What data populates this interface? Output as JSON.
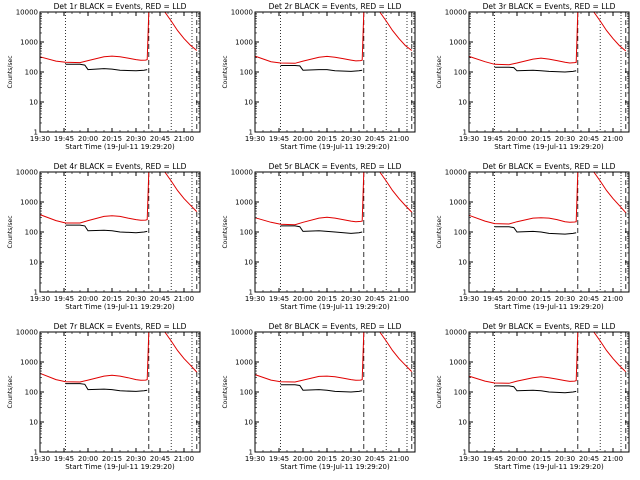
{
  "figure": {
    "x_tick_labels": [
      "19:30",
      "19:45",
      "20:00",
      "20:15",
      "20:30",
      "20:45",
      "21:00"
    ],
    "y_tick_labels": [
      "1",
      "10",
      "100",
      "1000",
      "10000"
    ],
    "xlabel": "Start Time (19-Jul-11 19:29:20)",
    "ylabel": "Counts/sec",
    "colors": {
      "events": "#000000",
      "lld": "#e00000",
      "axes": "#000000"
    }
  },
  "chart_data": [
    {
      "type": "line",
      "title": "Det 1r BLACK = Events, RED = LLD",
      "xlabel": "Start Time (19-Jul-11 19:29:20)",
      "ylabel": "Counts/sec",
      "xlim": [
        "19:30",
        "21:10"
      ],
      "ylim": [
        1,
        10000
      ],
      "y_scale": "log",
      "x_tick_labels": [
        "19:30",
        "19:45",
        "20:00",
        "20:15",
        "20:30",
        "20:45",
        "21:00"
      ],
      "y_tick_labels": [
        "1",
        "10",
        "100",
        "1000",
        "10000"
      ],
      "vlines_dotted": [
        "19:46",
        "20:52",
        "21:05"
      ],
      "vlines_dashed": [
        "20:38",
        "21:08"
      ],
      "series": [
        {
          "x": [
            "19:30",
            "19:40",
            "19:46",
            "19:55",
            "20:00",
            "20:10",
            "20:15",
            "20:20",
            "20:25",
            "20:30",
            "20:33",
            "20:36",
            "20:37",
            "20:38",
            "20:40",
            "20:44",
            "20:48",
            "20:52",
            "20:56",
            "21:00",
            "21:04",
            "21:08"
          ],
          "y": [
            320,
            230,
            210,
            205,
            240,
            320,
            340,
            320,
            290,
            260,
            245,
            250,
            260,
            10000,
            10000,
            10000,
            10000,
            5000,
            2400,
            1300,
            780,
            520
          ]
        },
        {
          "x": [
            "19:46",
            "19:55",
            "19:58",
            "20:00",
            "20:10",
            "20:15",
            "20:20",
            "20:30",
            "20:35",
            "20:37"
          ],
          "y": [
            180,
            180,
            170,
            120,
            130,
            125,
            115,
            110,
            115,
            120
          ]
        }
      ]
    },
    {
      "type": "line",
      "title": "Det 2r BLACK = Events, RED = LLD",
      "xlabel": "Start Time (19-Jul-11 19:29:20)",
      "ylabel": "Counts/sec",
      "xlim": [
        "19:30",
        "21:10"
      ],
      "ylim": [
        1,
        10000
      ],
      "y_scale": "log",
      "x_tick_labels": [
        "19:30",
        "19:45",
        "20:00",
        "20:15",
        "20:30",
        "20:45",
        "21:00"
      ],
      "y_tick_labels": [
        "1",
        "10",
        "100",
        "1000",
        "10000"
      ],
      "vlines_dotted": [
        "19:46",
        "20:52",
        "21:05"
      ],
      "vlines_dashed": [
        "20:38",
        "21:08"
      ],
      "series": [
        {
          "x": [
            "19:30",
            "19:40",
            "19:46",
            "19:55",
            "20:00",
            "20:10",
            "20:15",
            "20:20",
            "20:25",
            "20:30",
            "20:33",
            "20:36",
            "20:37",
            "20:38",
            "20:40",
            "20:44",
            "20:48",
            "20:52",
            "20:56",
            "21:00",
            "21:04",
            "21:08"
          ],
          "y": [
            340,
            220,
            200,
            195,
            230,
            310,
            330,
            310,
            280,
            250,
            235,
            240,
            250,
            10000,
            10000,
            10000,
            10000,
            5000,
            2400,
            1300,
            760,
            520
          ]
        },
        {
          "x": [
            "19:46",
            "19:55",
            "19:58",
            "20:00",
            "20:10",
            "20:15",
            "20:20",
            "20:30",
            "20:35",
            "20:37"
          ],
          "y": [
            165,
            165,
            160,
            115,
            120,
            120,
            110,
            105,
            110,
            115
          ]
        }
      ]
    },
    {
      "type": "line",
      "title": "Det 3r BLACK = Events, RED = LLD",
      "xlabel": "Start Time (19-Jul-11 19:29:20)",
      "ylabel": "Counts/sec",
      "xlim": [
        "19:30",
        "21:10"
      ],
      "ylim": [
        1,
        10000
      ],
      "y_scale": "log",
      "x_tick_labels": [
        "19:30",
        "19:45",
        "20:00",
        "20:15",
        "20:30",
        "20:45",
        "21:00"
      ],
      "y_tick_labels": [
        "1",
        "10",
        "100",
        "1000",
        "10000"
      ],
      "vlines_dotted": [
        "19:46",
        "20:52",
        "21:05"
      ],
      "vlines_dashed": [
        "20:38",
        "21:08"
      ],
      "series": [
        {
          "x": [
            "19:30",
            "19:40",
            "19:46",
            "19:55",
            "20:00",
            "20:10",
            "20:15",
            "20:20",
            "20:25",
            "20:30",
            "20:33",
            "20:36",
            "20:37",
            "20:38",
            "20:40",
            "20:44",
            "20:48",
            "20:52",
            "20:56",
            "21:00",
            "21:04",
            "21:08"
          ],
          "y": [
            330,
            220,
            180,
            175,
            200,
            270,
            290,
            270,
            240,
            210,
            200,
            205,
            210,
            10000,
            10000,
            10000,
            10000,
            5000,
            2400,
            1300,
            760,
            500
          ]
        },
        {
          "x": [
            "19:46",
            "19:55",
            "19:58",
            "20:00",
            "20:10",
            "20:15",
            "20:20",
            "20:30",
            "20:35",
            "20:37"
          ],
          "y": [
            145,
            145,
            140,
            110,
            115,
            110,
            105,
            100,
            105,
            110
          ]
        }
      ]
    },
    {
      "type": "line",
      "title": "Det 4r BLACK = Events, RED = LLD",
      "xlabel": "Start Time (19-Jul-11 19:29:20)",
      "ylabel": "Counts/sec",
      "xlim": [
        "19:30",
        "21:10"
      ],
      "ylim": [
        1,
        10000
      ],
      "y_scale": "log",
      "x_tick_labels": [
        "19:30",
        "19:45",
        "20:00",
        "20:15",
        "20:30",
        "20:45",
        "21:00"
      ],
      "y_tick_labels": [
        "1",
        "10",
        "100",
        "1000",
        "10000"
      ],
      "vlines_dotted": [
        "19:46",
        "20:52",
        "21:05"
      ],
      "vlines_dashed": [
        "20:38",
        "21:08"
      ],
      "series": [
        {
          "x": [
            "19:30",
            "19:40",
            "19:46",
            "19:55",
            "20:00",
            "20:10",
            "20:15",
            "20:20",
            "20:25",
            "20:30",
            "20:33",
            "20:36",
            "20:37",
            "20:38",
            "20:40",
            "20:44",
            "20:48",
            "20:52",
            "20:56",
            "21:00",
            "21:04",
            "21:08"
          ],
          "y": [
            380,
            240,
            200,
            200,
            240,
            330,
            350,
            330,
            290,
            260,
            245,
            250,
            260,
            10000,
            10000,
            10000,
            10000,
            5000,
            2400,
            1300,
            780,
            480
          ]
        },
        {
          "x": [
            "19:46",
            "19:55",
            "19:58",
            "20:00",
            "20:10",
            "20:15",
            "20:20",
            "20:30",
            "20:35",
            "20:37"
          ],
          "y": [
            170,
            170,
            160,
            110,
            115,
            110,
            100,
            95,
            100,
            105
          ]
        }
      ]
    },
    {
      "type": "line",
      "title": "Det 5r BLACK = Events, RED = LLD",
      "xlabel": "Start Time (19-Jul-11 19:29:20)",
      "ylabel": "Counts/sec",
      "xlim": [
        "19:30",
        "21:10"
      ],
      "ylim": [
        1,
        10000
      ],
      "y_scale": "log",
      "x_tick_labels": [
        "19:30",
        "19:45",
        "20:00",
        "20:15",
        "20:30",
        "20:45",
        "21:00"
      ],
      "y_tick_labels": [
        "1",
        "10",
        "100",
        "1000",
        "10000"
      ],
      "vlines_dotted": [
        "19:46",
        "20:52",
        "21:05"
      ],
      "vlines_dashed": [
        "20:38",
        "21:08"
      ],
      "series": [
        {
          "x": [
            "19:30",
            "19:40",
            "19:46",
            "19:55",
            "20:00",
            "20:10",
            "20:15",
            "20:20",
            "20:25",
            "20:30",
            "20:33",
            "20:36",
            "20:37",
            "20:38",
            "20:40",
            "20:44",
            "20:48",
            "20:52",
            "20:56",
            "21:00",
            "21:04",
            "21:08"
          ],
          "y": [
            300,
            210,
            180,
            175,
            210,
            290,
            310,
            290,
            260,
            230,
            220,
            225,
            230,
            10000,
            10000,
            10000,
            10000,
            5000,
            2400,
            1300,
            760,
            460
          ]
        },
        {
          "x": [
            "19:46",
            "19:55",
            "19:58",
            "20:00",
            "20:10",
            "20:15",
            "20:20",
            "20:30",
            "20:35",
            "20:37"
          ],
          "y": [
            160,
            160,
            150,
            105,
            110,
            105,
            100,
            90,
            95,
            100
          ]
        }
      ]
    },
    {
      "type": "line",
      "title": "Det 6r BLACK = Events, RED = LLD",
      "xlabel": "Start Time (19-Jul-11 19:29:20)",
      "ylabel": "Counts/sec",
      "xlim": [
        "19:30",
        "21:10"
      ],
      "ylim": [
        1,
        10000
      ],
      "y_scale": "log",
      "x_tick_labels": [
        "19:30",
        "19:45",
        "20:00",
        "20:15",
        "20:30",
        "20:45",
        "21:00"
      ],
      "y_tick_labels": [
        "1",
        "10",
        "100",
        "1000",
        "10000"
      ],
      "vlines_dotted": [
        "19:46",
        "20:52",
        "21:05"
      ],
      "vlines_dashed": [
        "20:38",
        "21:08"
      ],
      "series": [
        {
          "x": [
            "19:30",
            "19:40",
            "19:46",
            "19:55",
            "20:00",
            "20:10",
            "20:15",
            "20:20",
            "20:25",
            "20:30",
            "20:33",
            "20:36",
            "20:37",
            "20:38",
            "20:40",
            "20:44",
            "20:48",
            "20:52",
            "20:56",
            "21:00",
            "21:04",
            "21:08"
          ],
          "y": [
            360,
            230,
            190,
            185,
            220,
            290,
            300,
            290,
            260,
            220,
            210,
            215,
            220,
            10000,
            10000,
            10000,
            10000,
            5000,
            2400,
            1300,
            760,
            440
          ]
        },
        {
          "x": [
            "19:46",
            "19:55",
            "19:58",
            "20:00",
            "20:10",
            "20:15",
            "20:20",
            "20:30",
            "20:35",
            "20:37"
          ],
          "y": [
            150,
            150,
            140,
            100,
            105,
            100,
            90,
            85,
            90,
            95
          ]
        }
      ]
    },
    {
      "type": "line",
      "title": "Det 7r BLACK = Events, RED = LLD",
      "xlabel": "Start Time (19-Jul-11 19:29:20)",
      "ylabel": "Counts/sec",
      "xlim": [
        "19:30",
        "21:10"
      ],
      "ylim": [
        1,
        10000
      ],
      "y_scale": "log",
      "x_tick_labels": [
        "19:30",
        "19:45",
        "20:00",
        "20:15",
        "20:30",
        "20:45",
        "21:00"
      ],
      "y_tick_labels": [
        "1",
        "10",
        "100",
        "1000",
        "10000"
      ],
      "vlines_dotted": [
        "19:46",
        "20:52",
        "21:05"
      ],
      "vlines_dashed": [
        "20:38",
        "21:08"
      ],
      "series": [
        {
          "x": [
            "19:30",
            "19:40",
            "19:46",
            "19:55",
            "20:00",
            "20:10",
            "20:15",
            "20:20",
            "20:25",
            "20:30",
            "20:33",
            "20:36",
            "20:37",
            "20:38",
            "20:40",
            "20:44",
            "20:48",
            "20:52",
            "20:56",
            "21:00",
            "21:04",
            "21:08"
          ],
          "y": [
            420,
            260,
            220,
            215,
            250,
            340,
            360,
            340,
            300,
            260,
            245,
            250,
            260,
            10000,
            10000,
            10000,
            10000,
            5000,
            2400,
            1300,
            780,
            460
          ]
        },
        {
          "x": [
            "19:46",
            "19:55",
            "19:58",
            "20:00",
            "20:10",
            "20:15",
            "20:20",
            "20:30",
            "20:35",
            "20:37"
          ],
          "y": [
            190,
            190,
            180,
            120,
            125,
            120,
            110,
            105,
            110,
            115
          ]
        }
      ]
    },
    {
      "type": "line",
      "title": "Det 8r BLACK = Events, RED = LLD",
      "xlabel": "Start Time (19-Jul-11 19:29:20)",
      "ylabel": "Counts/sec",
      "xlim": [
        "19:30",
        "21:10"
      ],
      "ylim": [
        1,
        10000
      ],
      "y_scale": "log",
      "x_tick_labels": [
        "19:30",
        "19:45",
        "20:00",
        "20:15",
        "20:30",
        "20:45",
        "21:00"
      ],
      "y_tick_labels": [
        "1",
        "10",
        "100",
        "1000",
        "10000"
      ],
      "vlines_dotted": [
        "19:46",
        "20:52",
        "21:05"
      ],
      "vlines_dashed": [
        "20:38",
        "21:08"
      ],
      "series": [
        {
          "x": [
            "19:30",
            "19:40",
            "19:46",
            "19:55",
            "20:00",
            "20:10",
            "20:15",
            "20:20",
            "20:25",
            "20:30",
            "20:33",
            "20:36",
            "20:37",
            "20:38",
            "20:40",
            "20:44",
            "20:48",
            "20:52",
            "20:56",
            "21:00",
            "21:04",
            "21:08"
          ],
          "y": [
            380,
            250,
            220,
            215,
            250,
            330,
            340,
            320,
            290,
            260,
            245,
            250,
            260,
            10000,
            10000,
            10000,
            10000,
            5000,
            2400,
            1300,
            780,
            480
          ]
        },
        {
          "x": [
            "19:46",
            "19:55",
            "19:58",
            "20:00",
            "20:10",
            "20:15",
            "20:20",
            "20:30",
            "20:35",
            "20:37"
          ],
          "y": [
            175,
            175,
            165,
            115,
            120,
            115,
            105,
            100,
            105,
            110
          ]
        }
      ]
    },
    {
      "type": "line",
      "title": "Det 9r BLACK = Events, RED = LLD",
      "xlabel": "Start Time (19-Jul-11 19:29:20)",
      "ylabel": "Counts/sec",
      "xlim": [
        "19:30",
        "21:10"
      ],
      "ylim": [
        1,
        10000
      ],
      "y_scale": "log",
      "x_tick_labels": [
        "19:30",
        "19:45",
        "20:00",
        "20:15",
        "20:30",
        "20:45",
        "21:00"
      ],
      "y_tick_labels": [
        "1",
        "10",
        "100",
        "1000",
        "10000"
      ],
      "vlines_dotted": [
        "19:46",
        "20:52",
        "21:05"
      ],
      "vlines_dashed": [
        "20:38",
        "21:08"
      ],
      "series": [
        {
          "x": [
            "19:30",
            "19:40",
            "19:46",
            "19:55",
            "20:00",
            "20:10",
            "20:15",
            "20:20",
            "20:25",
            "20:30",
            "20:33",
            "20:36",
            "20:37",
            "20:38",
            "20:40",
            "20:44",
            "20:48",
            "20:52",
            "20:56",
            "21:00",
            "21:04",
            "21:08"
          ],
          "y": [
            340,
            230,
            200,
            195,
            230,
            300,
            320,
            300,
            270,
            240,
            225,
            230,
            240,
            10000,
            10000,
            10000,
            10000,
            5000,
            2400,
            1300,
            760,
            470
          ]
        },
        {
          "x": [
            "19:46",
            "19:55",
            "19:58",
            "20:00",
            "20:10",
            "20:15",
            "20:20",
            "20:30",
            "20:35",
            "20:37"
          ],
          "y": [
            160,
            160,
            150,
            110,
            115,
            110,
            100,
            95,
            100,
            105
          ]
        }
      ]
    }
  ]
}
